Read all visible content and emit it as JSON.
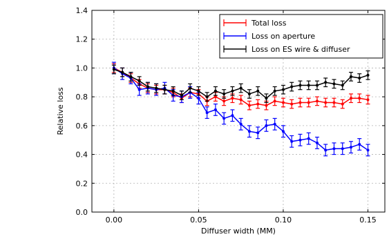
{
  "chart_data": {
    "type": "line",
    "xlabel": "Diffuser width (MM)",
    "ylabel": "Relative loss",
    "xlim": [
      -0.013,
      0.16
    ],
    "ylim": [
      0.0,
      1.4
    ],
    "xticks": [
      0.0,
      0.05,
      0.1,
      0.15
    ],
    "xtick_labels": [
      "0.00",
      "0.05",
      "0.10",
      "0.15"
    ],
    "yticks": [
      0.0,
      0.2,
      0.4,
      0.6,
      0.8,
      1.0,
      1.2,
      1.4
    ],
    "ytick_labels": [
      "0.0",
      "0.2",
      "0.4",
      "0.6",
      "0.8",
      "1.0",
      "1.2",
      "1.4"
    ],
    "grid": true,
    "legend_position": "top-right",
    "x": [
      0.0,
      0.005,
      0.01,
      0.015,
      0.02,
      0.025,
      0.03,
      0.035,
      0.04,
      0.045,
      0.05,
      0.055,
      0.06,
      0.065,
      0.07,
      0.075,
      0.08,
      0.085,
      0.09,
      0.095,
      0.1,
      0.105,
      0.11,
      0.115,
      0.12,
      0.125,
      0.13,
      0.135,
      0.14,
      0.145,
      0.15
    ],
    "series": [
      {
        "name": "Total loss",
        "color": "#ff0000",
        "values": [
          1.0,
          0.97,
          0.93,
          0.89,
          0.86,
          0.85,
          0.85,
          0.83,
          0.79,
          0.83,
          0.82,
          0.77,
          0.8,
          0.77,
          0.79,
          0.78,
          0.74,
          0.75,
          0.74,
          0.77,
          0.76,
          0.75,
          0.76,
          0.76,
          0.77,
          0.76,
          0.76,
          0.75,
          0.79,
          0.79,
          0.78
        ],
        "errors": [
          0.03,
          0.03,
          0.03,
          0.03,
          0.03,
          0.03,
          0.03,
          0.03,
          0.03,
          0.03,
          0.03,
          0.03,
          0.03,
          0.03,
          0.03,
          0.03,
          0.03,
          0.03,
          0.03,
          0.03,
          0.03,
          0.03,
          0.03,
          0.03,
          0.03,
          0.03,
          0.03,
          0.03,
          0.03,
          0.03,
          0.03
        ]
      },
      {
        "name": "Loss on aperture",
        "color": "#0000ff",
        "values": [
          1.0,
          0.96,
          0.93,
          0.85,
          0.86,
          0.85,
          0.86,
          0.81,
          0.8,
          0.83,
          0.79,
          0.69,
          0.71,
          0.65,
          0.67,
          0.61,
          0.56,
          0.55,
          0.6,
          0.61,
          0.56,
          0.49,
          0.5,
          0.51,
          0.48,
          0.43,
          0.44,
          0.44,
          0.45,
          0.47,
          0.43
        ],
        "errors": [
          0.04,
          0.04,
          0.04,
          0.04,
          0.04,
          0.04,
          0.04,
          0.04,
          0.04,
          0.04,
          0.04,
          0.04,
          0.04,
          0.04,
          0.04,
          0.04,
          0.04,
          0.04,
          0.04,
          0.04,
          0.04,
          0.04,
          0.04,
          0.04,
          0.04,
          0.04,
          0.04,
          0.04,
          0.04,
          0.04,
          0.04
        ]
      },
      {
        "name": "Loss on ES wire & diffuser",
        "color": "#000000",
        "values": [
          0.99,
          0.97,
          0.94,
          0.91,
          0.87,
          0.86,
          0.85,
          0.84,
          0.81,
          0.86,
          0.84,
          0.8,
          0.84,
          0.82,
          0.84,
          0.86,
          0.82,
          0.84,
          0.79,
          0.84,
          0.85,
          0.87,
          0.88,
          0.88,
          0.88,
          0.9,
          0.89,
          0.88,
          0.94,
          0.93,
          0.95
        ],
        "errors": [
          0.03,
          0.03,
          0.03,
          0.03,
          0.03,
          0.03,
          0.03,
          0.03,
          0.03,
          0.03,
          0.03,
          0.03,
          0.03,
          0.03,
          0.03,
          0.03,
          0.03,
          0.03,
          0.03,
          0.03,
          0.03,
          0.03,
          0.03,
          0.03,
          0.03,
          0.03,
          0.03,
          0.03,
          0.03,
          0.03,
          0.03
        ]
      }
    ]
  }
}
